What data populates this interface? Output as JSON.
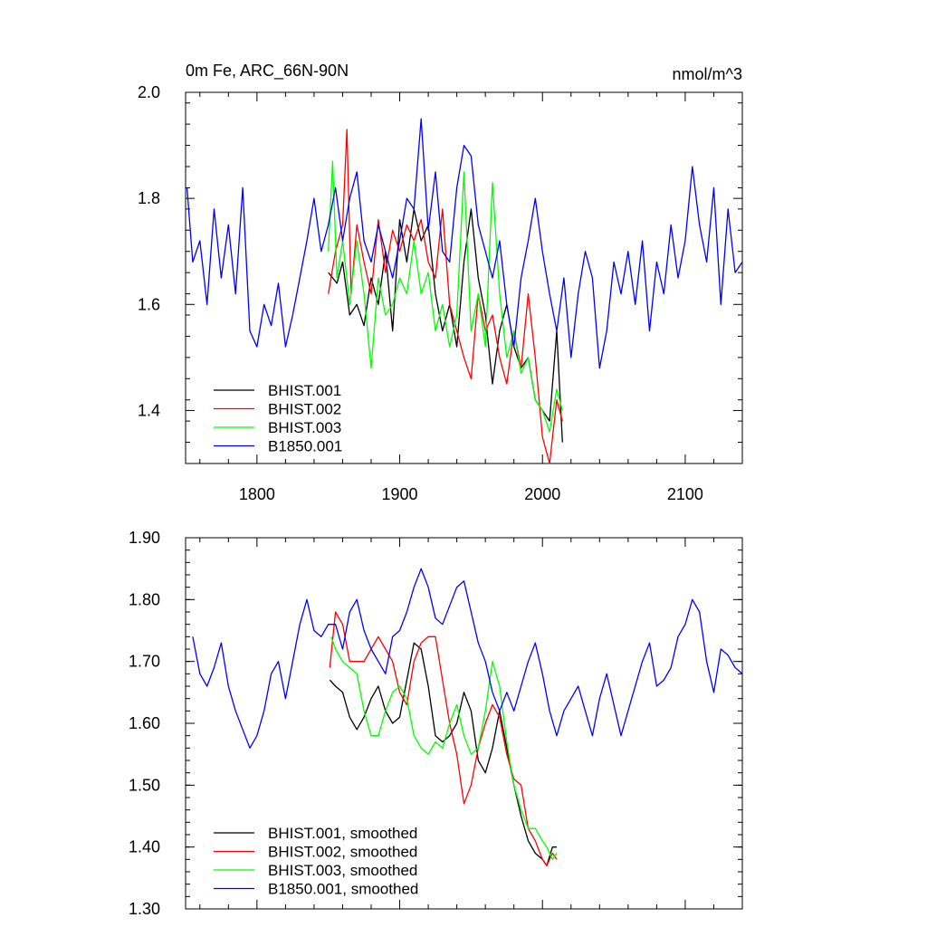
{
  "chart_data": [
    {
      "type": "line",
      "title": "0m Fe, ARC_66N-90N",
      "units": "nmol/m^3",
      "xlim": [
        1750,
        2140
      ],
      "ylim": [
        1.3,
        2.0
      ],
      "xticks": [
        1800,
        1900,
        2000,
        2100
      ],
      "yticks": [
        1.4,
        1.6,
        1.8,
        2.0
      ],
      "ytick_labels": [
        "1.4",
        "1.6",
        "1.8",
        "2.0"
      ],
      "legend_position": "bottom-left",
      "grid": false,
      "series": [
        {
          "name": "BHIST.001",
          "color": "#000000",
          "x": [
            1850,
            1856,
            1860,
            1865,
            1870,
            1875,
            1880,
            1885,
            1890,
            1895,
            1900,
            1905,
            1910,
            1915,
            1920,
            1925,
            1930,
            1935,
            1940,
            1945,
            1950,
            1955,
            1960,
            1965,
            1970,
            1975,
            1980,
            1985,
            1990,
            1995,
            2000,
            2005,
            2010,
            2014
          ],
          "y": [
            1.66,
            1.64,
            1.68,
            1.58,
            1.6,
            1.56,
            1.65,
            1.6,
            1.7,
            1.55,
            1.76,
            1.68,
            1.78,
            1.72,
            1.75,
            1.62,
            1.55,
            1.6,
            1.52,
            1.68,
            1.78,
            1.65,
            1.58,
            1.45,
            1.55,
            1.6,
            1.52,
            1.48,
            1.5,
            1.42,
            1.4,
            1.38,
            1.55,
            1.34
          ]
        },
        {
          "name": "BHIST.002",
          "color": "#ff0000",
          "x": [
            1850,
            1855,
            1860,
            1863,
            1866,
            1870,
            1875,
            1880,
            1885,
            1890,
            1895,
            1900,
            1905,
            1910,
            1915,
            1920,
            1925,
            1930,
            1935,
            1940,
            1945,
            1950,
            1955,
            1960,
            1965,
            1970,
            1975,
            1980,
            1985,
            1990,
            1995,
            2000,
            2005,
            2010,
            2014
          ],
          "y": [
            1.62,
            1.7,
            1.75,
            1.93,
            1.62,
            1.75,
            1.68,
            1.62,
            1.76,
            1.66,
            1.74,
            1.7,
            1.75,
            1.72,
            1.76,
            1.68,
            1.65,
            1.78,
            1.6,
            1.55,
            1.5,
            1.46,
            1.62,
            1.55,
            1.58,
            1.5,
            1.45,
            1.55,
            1.48,
            1.62,
            1.5,
            1.35,
            1.3,
            1.42,
            1.38
          ]
        },
        {
          "name": "BHIST.003",
          "color": "#00ff00",
          "x": [
            1850,
            1853,
            1856,
            1860,
            1865,
            1870,
            1875,
            1880,
            1885,
            1890,
            1895,
            1900,
            1905,
            1910,
            1915,
            1920,
            1925,
            1930,
            1935,
            1940,
            1945,
            1950,
            1955,
            1960,
            1965,
            1970,
            1975,
            1980,
            1985,
            1990,
            1995,
            2000,
            2005,
            2010,
            2014
          ],
          "y": [
            1.7,
            1.87,
            1.65,
            1.72,
            1.6,
            1.72,
            1.62,
            1.48,
            1.65,
            1.58,
            1.6,
            1.65,
            1.62,
            1.72,
            1.62,
            1.66,
            1.55,
            1.6,
            1.52,
            1.58,
            1.85,
            1.55,
            1.62,
            1.52,
            1.83,
            1.62,
            1.5,
            1.55,
            1.47,
            1.5,
            1.42,
            1.4,
            1.36,
            1.44,
            1.4
          ]
        },
        {
          "name": "B1850.001",
          "color": "#0000ff",
          "x": [
            1751,
            1755,
            1760,
            1765,
            1770,
            1775,
            1780,
            1785,
            1790,
            1795,
            1800,
            1805,
            1810,
            1815,
            1820,
            1825,
            1830,
            1835,
            1840,
            1845,
            1850,
            1855,
            1860,
            1865,
            1870,
            1875,
            1880,
            1885,
            1890,
            1895,
            1900,
            1905,
            1910,
            1915,
            1920,
            1925,
            1930,
            1935,
            1940,
            1945,
            1950,
            1955,
            1960,
            1965,
            1970,
            1975,
            1980,
            1985,
            1990,
            1995,
            2000,
            2005,
            2010,
            2015,
            2020,
            2025,
            2030,
            2035,
            2040,
            2045,
            2050,
            2055,
            2060,
            2065,
            2070,
            2075,
            2080,
            2085,
            2090,
            2095,
            2100,
            2105,
            2110,
            2115,
            2120,
            2125,
            2130,
            2135,
            2140
          ],
          "y": [
            1.82,
            1.68,
            1.72,
            1.6,
            1.78,
            1.65,
            1.75,
            1.62,
            1.82,
            1.55,
            1.52,
            1.6,
            1.56,
            1.64,
            1.52,
            1.58,
            1.65,
            1.72,
            1.8,
            1.7,
            1.75,
            1.82,
            1.72,
            1.8,
            1.85,
            1.72,
            1.68,
            1.75,
            1.7,
            1.65,
            1.72,
            1.8,
            1.78,
            1.95,
            1.74,
            1.85,
            1.7,
            1.68,
            1.82,
            1.9,
            1.88,
            1.75,
            1.7,
            1.65,
            1.72,
            1.6,
            1.52,
            1.65,
            1.72,
            1.8,
            1.7,
            1.62,
            1.55,
            1.65,
            1.5,
            1.62,
            1.7,
            1.65,
            1.48,
            1.55,
            1.68,
            1.62,
            1.7,
            1.6,
            1.72,
            1.55,
            1.68,
            1.62,
            1.75,
            1.65,
            1.72,
            1.86,
            1.75,
            1.68,
            1.82,
            1.6,
            1.78,
            1.66,
            1.68
          ]
        }
      ]
    },
    {
      "type": "line",
      "title": "",
      "xlim": [
        1750,
        2140
      ],
      "ylim": [
        1.3,
        1.9
      ],
      "xticks": [
        1800,
        1900,
        2000,
        2100
      ],
      "yticks": [
        1.3,
        1.4,
        1.5,
        1.6,
        1.7,
        1.8,
        1.9
      ],
      "ytick_labels": [
        "1.30",
        "1.40",
        "1.50",
        "1.60",
        "1.70",
        "1.80",
        "1.90"
      ],
      "legend_position": "bottom-left",
      "grid": false,
      "series": [
        {
          "name": "BHIST.001, smoothed",
          "color": "#000000",
          "x": [
            1851,
            1855,
            1860,
            1865,
            1870,
            1875,
            1880,
            1885,
            1890,
            1895,
            1900,
            1905,
            1910,
            1915,
            1920,
            1925,
            1930,
            1935,
            1940,
            1945,
            1950,
            1955,
            1960,
            1965,
            1970,
            1975,
            1980,
            1985,
            1990,
            1995,
            2000,
            2003,
            2007,
            2010
          ],
          "y": [
            1.67,
            1.66,
            1.65,
            1.61,
            1.59,
            1.61,
            1.64,
            1.66,
            1.62,
            1.6,
            1.61,
            1.67,
            1.73,
            1.72,
            1.66,
            1.58,
            1.57,
            1.58,
            1.6,
            1.65,
            1.62,
            1.54,
            1.52,
            1.56,
            1.62,
            1.56,
            1.5,
            1.45,
            1.41,
            1.39,
            1.38,
            1.37,
            1.4,
            1.4
          ]
        },
        {
          "name": "BHIST.002, smoothed",
          "color": "#ff0000",
          "x": [
            1851,
            1855,
            1860,
            1865,
            1870,
            1875,
            1880,
            1885,
            1890,
            1895,
            1900,
            1905,
            1910,
            1915,
            1920,
            1925,
            1930,
            1935,
            1940,
            1945,
            1950,
            1955,
            1960,
            1965,
            1970,
            1975,
            1980,
            1985,
            1990,
            1995,
            2000,
            2003,
            2007,
            2010
          ],
          "y": [
            1.69,
            1.78,
            1.76,
            1.7,
            1.7,
            1.7,
            1.72,
            1.74,
            1.72,
            1.7,
            1.65,
            1.63,
            1.7,
            1.73,
            1.74,
            1.74,
            1.67,
            1.6,
            1.55,
            1.47,
            1.5,
            1.56,
            1.6,
            1.63,
            1.61,
            1.55,
            1.51,
            1.5,
            1.43,
            1.41,
            1.38,
            1.37,
            1.39,
            1.38
          ]
        },
        {
          "name": "BHIST.003, smoothed",
          "color": "#00ff00",
          "x": [
            1852,
            1855,
            1860,
            1865,
            1870,
            1875,
            1880,
            1885,
            1890,
            1895,
            1900,
            1905,
            1910,
            1915,
            1920,
            1925,
            1930,
            1935,
            1940,
            1945,
            1950,
            1955,
            1960,
            1965,
            1970,
            1975,
            1980,
            1985,
            1990,
            1995,
            2000,
            2003,
            2007,
            2010
          ],
          "y": [
            1.74,
            1.72,
            1.7,
            1.69,
            1.68,
            1.62,
            1.58,
            1.58,
            1.62,
            1.65,
            1.66,
            1.64,
            1.58,
            1.56,
            1.55,
            1.57,
            1.56,
            1.6,
            1.63,
            1.58,
            1.55,
            1.56,
            1.62,
            1.7,
            1.66,
            1.57,
            1.5,
            1.46,
            1.43,
            1.43,
            1.41,
            1.4,
            1.38,
            1.39
          ]
        },
        {
          "name": "B1850.001, smoothed",
          "color": "#0000ff",
          "x": [
            1755,
            1760,
            1765,
            1770,
            1775,
            1780,
            1785,
            1790,
            1795,
            1800,
            1805,
            1810,
            1815,
            1820,
            1825,
            1830,
            1835,
            1840,
            1845,
            1850,
            1855,
            1860,
            1865,
            1870,
            1875,
            1880,
            1885,
            1890,
            1895,
            1900,
            1905,
            1910,
            1915,
            1920,
            1925,
            1930,
            1935,
            1940,
            1945,
            1950,
            1955,
            1960,
            1965,
            1970,
            1975,
            1980,
            1985,
            1990,
            1995,
            2000,
            2005,
            2010,
            2015,
            2020,
            2025,
            2030,
            2035,
            2040,
            2045,
            2050,
            2055,
            2060,
            2065,
            2070,
            2075,
            2080,
            2085,
            2090,
            2095,
            2100,
            2105,
            2110,
            2115,
            2120,
            2125,
            2130,
            2135,
            2140
          ],
          "y": [
            1.74,
            1.68,
            1.66,
            1.69,
            1.73,
            1.66,
            1.62,
            1.59,
            1.56,
            1.58,
            1.62,
            1.68,
            1.7,
            1.64,
            1.7,
            1.76,
            1.8,
            1.75,
            1.74,
            1.76,
            1.76,
            1.72,
            1.78,
            1.8,
            1.75,
            1.72,
            1.7,
            1.68,
            1.74,
            1.75,
            1.78,
            1.82,
            1.85,
            1.82,
            1.77,
            1.76,
            1.79,
            1.82,
            1.83,
            1.78,
            1.73,
            1.7,
            1.65,
            1.62,
            1.65,
            1.62,
            1.66,
            1.7,
            1.73,
            1.68,
            1.62,
            1.58,
            1.62,
            1.64,
            1.66,
            1.62,
            1.58,
            1.64,
            1.68,
            1.63,
            1.58,
            1.62,
            1.66,
            1.7,
            1.73,
            1.66,
            1.67,
            1.69,
            1.74,
            1.76,
            1.8,
            1.78,
            1.7,
            1.65,
            1.72,
            1.71,
            1.69,
            1.68
          ]
        }
      ]
    }
  ]
}
